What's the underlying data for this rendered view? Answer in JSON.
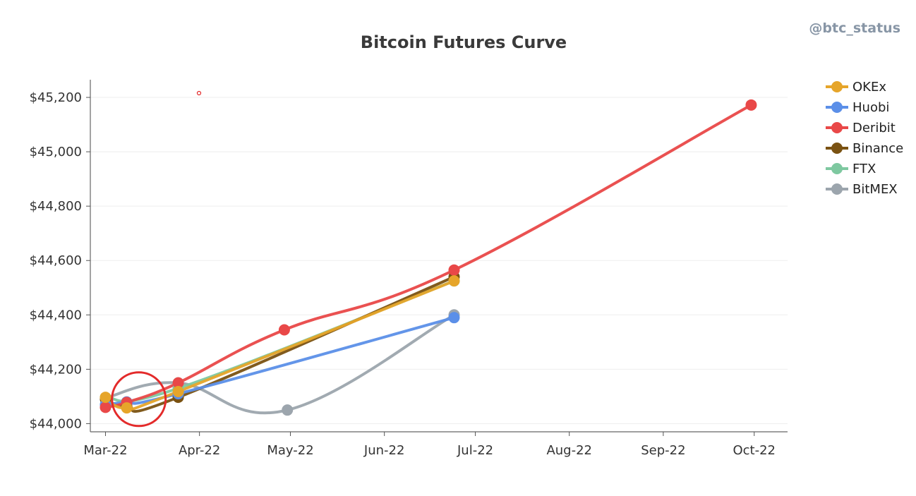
{
  "watermark": "@btc_status",
  "chart_data": {
    "type": "line",
    "title": "Bitcoin Futures Curve",
    "xlabel": "",
    "ylabel": "",
    "x_ticks": [
      "Mar-22",
      "Apr-22",
      "May-22",
      "Jun-22",
      "Jul-22",
      "Aug-22",
      "Sep-22",
      "Oct-22"
    ],
    "y_ticks": [
      "$44,000",
      "$44,200",
      "$44,400",
      "$44,600",
      "$44,800",
      "$45,000",
      "$45,200"
    ],
    "ylim": [
      43970,
      45265
    ],
    "xlim": [
      "2022-02-24",
      "2022-10-12"
    ],
    "grid": "horizontal",
    "legend_position": "right",
    "series": [
      {
        "name": "BitMEX",
        "color": "#9ca5ad",
        "dash": false,
        "curve": "smooth",
        "points": [
          [
            "2022-03-01",
            44095
          ],
          [
            "2022-03-25",
            44150
          ],
          [
            "2022-04-30",
            44050
          ],
          [
            "2022-06-24",
            44400
          ]
        ]
      },
      {
        "name": "FTX",
        "color": "#7ec8a0",
        "dash": false,
        "curve": "smooth",
        "points": [
          [
            "2022-03-01",
            44095
          ],
          [
            "2022-03-25",
            44130
          ],
          [
            "2022-06-24",
            44525
          ]
        ]
      },
      {
        "name": "Binance",
        "color": "#7a5212",
        "dash": false,
        "curve": "smooth",
        "points": [
          [
            "2022-03-01",
            44090
          ],
          [
            "2022-03-08",
            44065
          ],
          [
            "2022-03-25",
            44097
          ],
          [
            "2022-06-24",
            44540
          ]
        ]
      },
      {
        "name": "Huobi",
        "color": "#5b8fe8",
        "dash": false,
        "curve": "smooth",
        "points": [
          [
            "2022-03-01",
            44070
          ],
          [
            "2022-03-08",
            44080
          ],
          [
            "2022-03-25",
            44110
          ],
          [
            "2022-06-24",
            44390
          ]
        ]
      },
      {
        "name": "Deribit",
        "color": "#e94848",
        "dash": false,
        "curve": "smooth",
        "points": [
          [
            "2022-03-01",
            44060
          ],
          [
            "2022-03-08",
            44078
          ],
          [
            "2022-03-25",
            44150
          ],
          [
            "2022-04-29",
            44345
          ],
          [
            "2022-06-24",
            44565
          ],
          [
            "2022-09-30",
            45172
          ]
        ]
      },
      {
        "name": "OKEx",
        "color": "#e6a52a",
        "dash": false,
        "curve": "smooth",
        "points": [
          [
            "2022-03-01",
            44097
          ],
          [
            "2022-03-08",
            44058
          ],
          [
            "2022-03-25",
            44118
          ],
          [
            "2022-06-24",
            44525
          ]
        ]
      }
    ],
    "legend_order": [
      "OKEx",
      "Huobi",
      "Deribit",
      "Binance",
      "FTX",
      "BitMEX"
    ],
    "annotation": {
      "shape": "circle",
      "color": "#e32a2a",
      "x_date": "2022-03-12",
      "y_value": 44090
    }
  }
}
